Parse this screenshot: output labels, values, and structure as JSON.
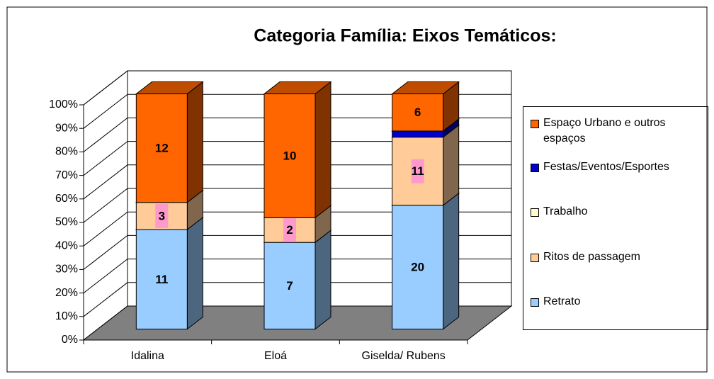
{
  "chart_data": {
    "type": "bar",
    "stacking": "percent",
    "title": "Categoria Família: Eixos Temáticos:",
    "categories": [
      "Idalina",
      "Eloá",
      "Giselda/ Rubens"
    ],
    "series": [
      {
        "name": "Retrato",
        "color": "#99ccff",
        "values": [
          11,
          7,
          20
        ],
        "data_labels": true
      },
      {
        "name": "Ritos de passagem",
        "color": "#ffcc99",
        "values": [
          3,
          2,
          11
        ],
        "data_labels": true,
        "label_background": "#ff99cc"
      },
      {
        "name": "Trabalho",
        "color": "#ffffcc",
        "values": [
          0,
          0,
          0
        ],
        "data_labels": true
      },
      {
        "name": "Festas/Eventos/Esportes",
        "color": "#0000cc",
        "values": [
          0,
          0,
          1
        ],
        "data_labels": false
      },
      {
        "name": "Espaço Urbano e outros espaços",
        "color": "#ff6600",
        "values": [
          12,
          10,
          6
        ],
        "data_labels": true
      }
    ],
    "ylim": [
      0,
      100
    ],
    "yticks": [
      {
        "value": 0,
        "label": "0%"
      },
      {
        "value": 10,
        "label": "10%"
      },
      {
        "value": 20,
        "label": "20%"
      },
      {
        "value": 30,
        "label": "30%"
      },
      {
        "value": 40,
        "label": "40%"
      },
      {
        "value": 50,
        "label": "50%"
      },
      {
        "value": 60,
        "label": "60%"
      },
      {
        "value": 70,
        "label": "70%"
      },
      {
        "value": 80,
        "label": "80%"
      },
      {
        "value": 90,
        "label": "90%"
      },
      {
        "value": 100,
        "label": "100%"
      }
    ],
    "grid": true,
    "legend": "right"
  }
}
